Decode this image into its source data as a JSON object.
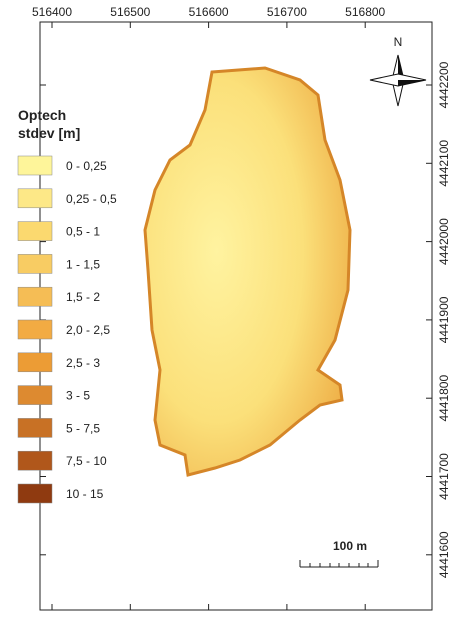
{
  "map": {
    "xticks": [
      516400,
      516500,
      516600,
      516700,
      516800
    ],
    "yticks": [
      4442200,
      4442100,
      4442000,
      4441900,
      4441800,
      4441700,
      4441600
    ],
    "north_label": "N",
    "scale_label": "100 m",
    "legend": {
      "title": [
        "Optech",
        "stdev [m]"
      ],
      "entries": [
        {
          "label": "0 - 0,25",
          "color": "#fef59a"
        },
        {
          "label": "0,25 - 0,5",
          "color": "#fde887"
        },
        {
          "label": "0,5 - 1",
          "color": "#fbd96f"
        },
        {
          "label": "1 - 1,5",
          "color": "#f8cc63"
        },
        {
          "label": "1,5 - 2",
          "color": "#f5bd55"
        },
        {
          "label": "2,0 - 2,5",
          "color": "#f2ab43"
        },
        {
          "label": "2,5 - 3",
          "color": "#ec9c35"
        },
        {
          "label": "3 - 5",
          "color": "#dd8a30"
        },
        {
          "label": "5 - 7,5",
          "color": "#c87125"
        },
        {
          "label": "7,5 - 10",
          "color": "#b0571b"
        },
        {
          "label": "10 - 15",
          "color": "#8f3a10"
        }
      ]
    }
  }
}
